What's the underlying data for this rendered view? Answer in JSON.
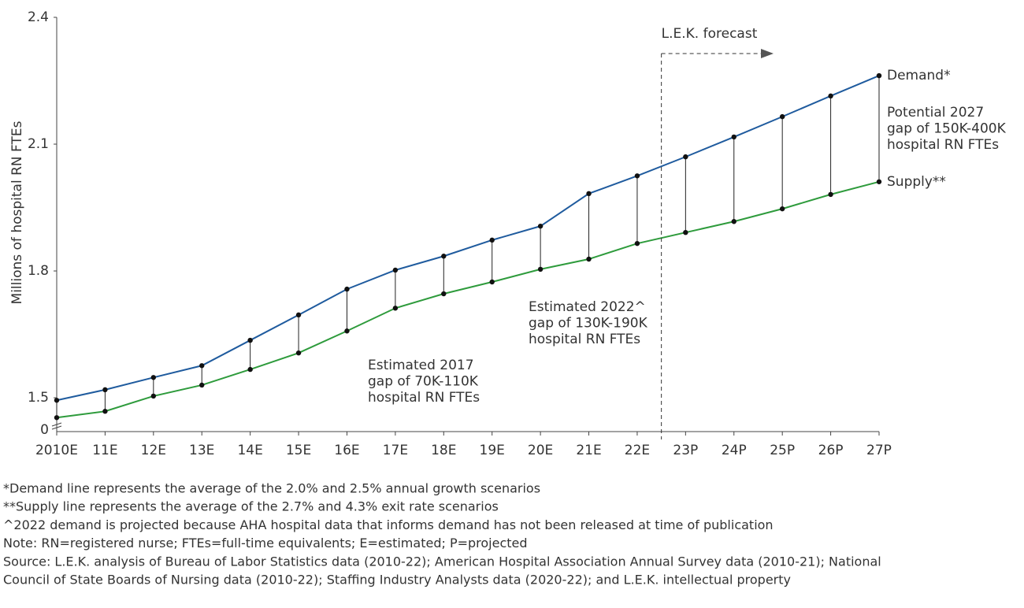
{
  "chart_data": {
    "type": "line",
    "y_label": "Millions of hospital RN FTEs",
    "categories": [
      "2010E",
      "11E",
      "12E",
      "13E",
      "14E",
      "15E",
      "16E",
      "17E",
      "18E",
      "19E",
      "20E",
      "21E",
      "22E",
      "23P",
      "24P",
      "25P",
      "26P",
      "27P"
    ],
    "series": [
      {
        "name": "Demand*",
        "color": "#1f5b9e",
        "values": [
          1.494,
          1.519,
          1.548,
          1.576,
          1.636,
          1.696,
          1.757,
          1.802,
          1.835,
          1.873,
          1.906,
          1.983,
          2.025,
          2.07,
          2.117,
          2.165,
          2.214,
          2.262
        ]
      },
      {
        "name": "Supply**",
        "color": "#2e9b3c",
        "values": [
          1.453,
          1.468,
          1.504,
          1.53,
          1.567,
          1.606,
          1.658,
          1.712,
          1.746,
          1.774,
          1.804,
          1.828,
          1.865,
          1.891,
          1.917,
          1.947,
          1.981,
          2.011
        ]
      }
    ],
    "ylim": [
      1.42,
      2.4
    ],
    "yticks": [
      1.5,
      1.8,
      2.1,
      2.4
    ],
    "y_break_label": "0",
    "forecast_label": "L.E.K. forecast",
    "annotations": [
      [
        "Estimated 2017",
        "gap of 70K-110K",
        "hospital RN FTEs"
      ],
      [
        "Estimated 2022^",
        "gap of 130K-190K",
        "hospital RN FTEs"
      ],
      [
        "Potential 2027",
        "gap of 150K-400K",
        "hospital RN FTEs"
      ]
    ],
    "footnotes": [
      "*Demand line represents the average of the 2.0% and 2.5% annual growth scenarios",
      "**Supply line represents the average of the 2.7% and 4.3% exit rate scenarios",
      "^2022 demand is projected because AHA hospital data that informs demand has not been released at time of publication",
      "Note: RN=registered nurse; FTEs=full-time equivalents; E=estimated; P=projected",
      "Source: L.E.K. analysis of Bureau of Labor Statistics data (2010-22); American Hospital Association Annual Survey data (2010-21); National",
      "Council of State Boards of Nursing data (2010-22); Staffing Industry Analysts data (2020-22); and L.E.K. intellectual property"
    ]
  }
}
